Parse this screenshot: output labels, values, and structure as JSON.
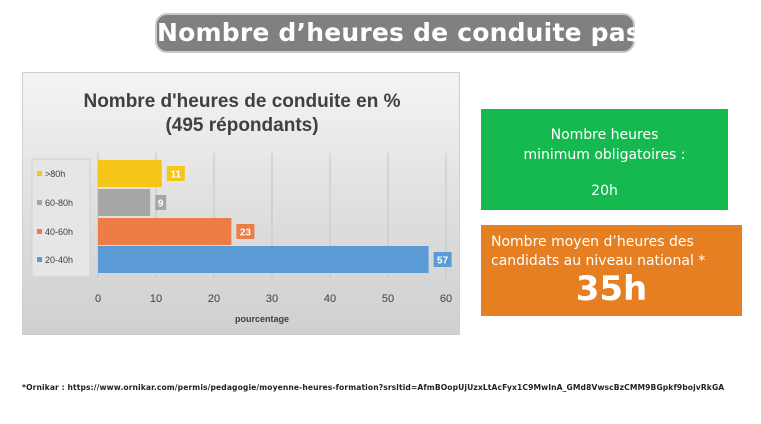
{
  "header": {
    "title": "Nombre d’heures de conduite passées"
  },
  "chart_data": {
    "type": "bar",
    "orientation": "horizontal",
    "title": "Nombre d'heures de conduite en %",
    "subtitle": "(495 répondants)",
    "xlabel": "pourcentage",
    "ylabel": "",
    "xlim": [
      0,
      60
    ],
    "xticks": [
      "0",
      "10",
      "20",
      "30",
      "40",
      "50",
      "60"
    ],
    "grid": true,
    "legend": "left",
    "categories": [
      ">80h",
      "60-80h",
      "40-60h",
      "20-40h"
    ],
    "values": [
      11,
      9,
      23,
      57
    ],
    "data_labels": [
      "11",
      "9",
      "23",
      "57"
    ],
    "colors": [
      "#f5c518",
      "#a6a6a6",
      "#ed7d45",
      "#5b9bd5"
    ]
  },
  "info_green": {
    "line1": "Nombre heures",
    "line2": "minimum obligatoires :",
    "value": "20h",
    "color": "#15b950"
  },
  "info_orange": {
    "line1": "Nombre moyen d’heures des",
    "line2": "candidats au niveau national *",
    "value": "35h",
    "color": "#e67e22"
  },
  "footnote": "*Ornikar : https://www.ornikar.com/permis/pedagogie/moyenne-heures-formation?srsltid=AfmBOopUjUzxLtAcFyx1C9MwInA_GMd8VwscBzCMM9BGpkf9bojvRkGA"
}
